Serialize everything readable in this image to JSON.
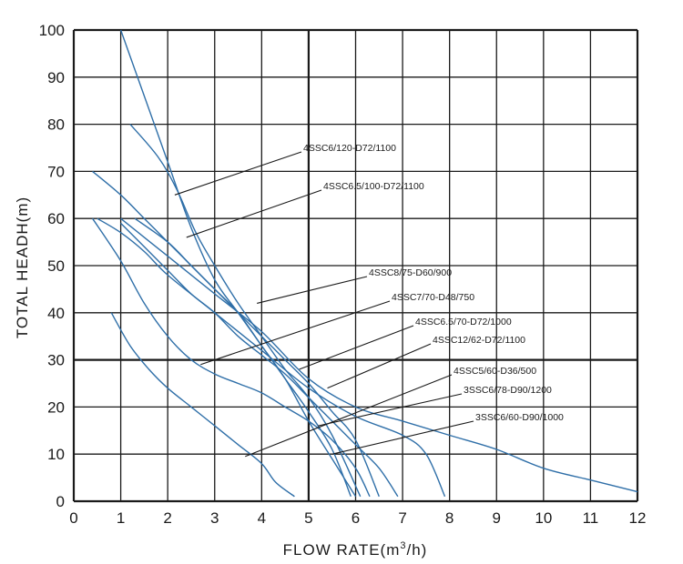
{
  "chart_data": {
    "type": "line",
    "title": "",
    "xlabel": "FLOW RATE(m",
    "xlabel_sup": "3",
    "xlabel_tail": "/h)",
    "ylabel": "TOTAL HEADH(m)",
    "xlim": [
      0,
      12
    ],
    "ylim": [
      0,
      100
    ],
    "x_ticks": [
      "0",
      "1",
      "2",
      "3",
      "4",
      "5",
      "6",
      "7",
      "8",
      "9",
      "10",
      "11",
      "12"
    ],
    "y_ticks": [
      "0",
      "10",
      "20",
      "30",
      "40",
      "50",
      "60",
      "70",
      "80",
      "90",
      "100"
    ],
    "grid": true,
    "line_color": "#2f6fa8",
    "series": [
      {
        "name": "4SSC6/120-D72/1100",
        "points": [
          [
            1.0,
            100
          ],
          [
            1.5,
            86
          ],
          [
            2.0,
            72
          ],
          [
            2.5,
            58
          ],
          [
            3.0,
            47
          ],
          [
            3.5,
            40
          ],
          [
            4.0,
            33
          ],
          [
            4.5,
            26
          ],
          [
            5.0,
            19
          ],
          [
            5.5,
            11
          ],
          [
            5.9,
            1
          ]
        ]
      },
      {
        "name": "4SSC6.5/100-D72/1100",
        "points": [
          [
            1.2,
            80
          ],
          [
            1.8,
            73
          ],
          [
            2.2,
            66
          ],
          [
            2.6,
            57
          ],
          [
            3.0,
            50
          ],
          [
            3.5,
            42
          ],
          [
            4.0,
            35
          ],
          [
            4.5,
            28
          ],
          [
            5.0,
            22
          ],
          [
            5.5,
            14
          ],
          [
            6.1,
            1
          ]
        ]
      },
      {
        "name": "4SSC8/75-D60/900",
        "points": [
          [
            0.4,
            70
          ],
          [
            1.0,
            65
          ],
          [
            1.5,
            60
          ],
          [
            2.0,
            55
          ],
          [
            2.5,
            50
          ],
          [
            3.0,
            45
          ],
          [
            3.5,
            40
          ],
          [
            4.0,
            33
          ],
          [
            4.5,
            26
          ],
          [
            5.0,
            17
          ],
          [
            5.5,
            9
          ],
          [
            6.0,
            1
          ]
        ]
      },
      {
        "name": "4SSC7/70-D48/750",
        "points": [
          [
            0.4,
            60
          ],
          [
            1.0,
            51
          ],
          [
            1.5,
            42
          ],
          [
            2.0,
            35
          ],
          [
            2.5,
            30
          ],
          [
            3.0,
            27
          ],
          [
            3.5,
            25
          ],
          [
            4.0,
            23
          ],
          [
            4.5,
            20
          ],
          [
            5.0,
            17
          ],
          [
            5.5,
            13
          ],
          [
            6.0,
            7
          ],
          [
            6.3,
            1
          ]
        ]
      },
      {
        "name": "4SSC6.5/70-D72/1000",
        "points": [
          [
            1.3,
            60
          ],
          [
            2.0,
            55
          ],
          [
            2.5,
            50
          ],
          [
            3.0,
            45
          ],
          [
            3.5,
            40
          ],
          [
            4.0,
            35
          ],
          [
            4.5,
            30
          ],
          [
            5.0,
            25
          ],
          [
            5.5,
            19
          ],
          [
            6.0,
            13
          ],
          [
            6.5,
            1
          ]
        ]
      },
      {
        "name": "4SSC12/62-D72/1100",
        "points": [
          [
            1.0,
            60
          ],
          [
            2.0,
            52
          ],
          [
            3.0,
            44
          ],
          [
            4.0,
            36
          ],
          [
            5.0,
            26
          ],
          [
            6.0,
            20
          ],
          [
            7.0,
            17
          ],
          [
            8.0,
            14
          ],
          [
            9.0,
            11
          ],
          [
            10.0,
            7
          ],
          [
            11.0,
            4.5
          ],
          [
            12.0,
            2
          ]
        ]
      },
      {
        "name": "4SSC5/60-D36/500",
        "points": [
          [
            0.8,
            40
          ],
          [
            1.2,
            33
          ],
          [
            1.6,
            28
          ],
          [
            2.0,
            24
          ],
          [
            2.5,
            20
          ],
          [
            3.0,
            16
          ],
          [
            3.5,
            12
          ],
          [
            4.0,
            8
          ],
          [
            4.3,
            4
          ],
          [
            4.7,
            1
          ]
        ]
      },
      {
        "name": "3SSC6/78-D90/1200",
        "points": [
          [
            1.0,
            59
          ],
          [
            1.5,
            54
          ],
          [
            2.0,
            49
          ],
          [
            2.5,
            44
          ],
          [
            3.0,
            40
          ],
          [
            3.5,
            35
          ],
          [
            4.0,
            31
          ],
          [
            4.5,
            27
          ],
          [
            5.0,
            22
          ],
          [
            5.5,
            17
          ],
          [
            6.0,
            12
          ],
          [
            6.5,
            7
          ],
          [
            6.9,
            1
          ]
        ]
      },
      {
        "name": "3SSC6/60-D90/1000",
        "points": [
          [
            0.5,
            60
          ],
          [
            1.0,
            57
          ],
          [
            1.5,
            53
          ],
          [
            2.0,
            48
          ],
          [
            3.0,
            40
          ],
          [
            4.0,
            32
          ],
          [
            5.0,
            24
          ],
          [
            6.0,
            18
          ],
          [
            7.0,
            14
          ],
          [
            7.5,
            10
          ],
          [
            7.9,
            1
          ]
        ]
      }
    ],
    "annotations": [
      {
        "text": "4SSC6/120-D72/1100",
        "x": 2.15,
        "y": 65
      },
      {
        "text": "4SSC6.5/100-D72/1100",
        "x": 2.4,
        "y": 56
      },
      {
        "text": "4SSC8/75-D60/900",
        "x": 3.9,
        "y": 42
      },
      {
        "text": "4SSC7/70-D48/750",
        "x": 2.7,
        "y": 29
      },
      {
        "text": "4SSC6.5/70-D72/1000",
        "x": 4.8,
        "y": 28
      },
      {
        "text": "4SSC12/62-D72/1100",
        "x": 5.4,
        "y": 24
      },
      {
        "text": "4SSC5/60-D36/500",
        "x": 3.65,
        "y": 9.5
      },
      {
        "text": "3SSC6/78-D90/1200",
        "x": 5.2,
        "y": 16
      },
      {
        "text": "3SSC6/60-D90/1000",
        "x": 5.5,
        "y": 10
      }
    ]
  }
}
